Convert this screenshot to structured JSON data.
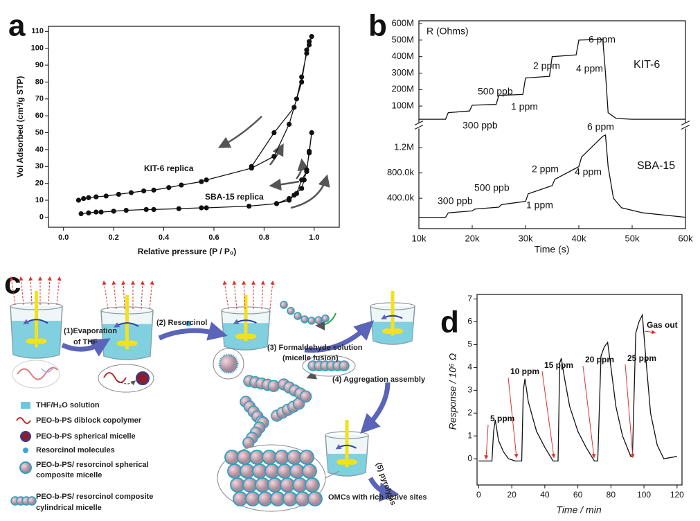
{
  "chart_data": [
    {
      "type": "line",
      "panel": "a",
      "markers": true,
      "x_label": "Relative pressure (P / P₀)",
      "y_label": "Vol Adsorbed (cm³/g STP)",
      "xlim": [
        -0.06,
        1.1
      ],
      "ylim": [
        -6,
        113
      ],
      "xticks": [
        {
          "value": 0,
          "label": "0.0"
        },
        0.2,
        0.4,
        0.6,
        0.8,
        {
          "value": 1,
          "label": "1.0"
        }
      ],
      "yticks": [
        0,
        10,
        20,
        30,
        40,
        50,
        60,
        70,
        80,
        90,
        100,
        110
      ],
      "series": [
        {
          "name": "KIT-6 replica",
          "color": "#111111",
          "x": [
            0.06,
            0.08,
            0.1,
            0.13,
            0.17,
            0.22,
            0.27,
            0.32,
            0.36,
            0.42,
            0.47,
            0.55,
            0.57,
            0.75,
            0.84,
            0.9,
            0.93,
            0.95,
            0.97,
            0.98,
            0.99,
            0.98,
            0.97,
            0.95,
            0.92,
            0.84,
            0.75
          ],
          "values": [
            10,
            11,
            11.5,
            12,
            12.5,
            13.5,
            14.5,
            15.5,
            16,
            17.5,
            19,
            21,
            22,
            29,
            36,
            55,
            70,
            83,
            97,
            102,
            107,
            104,
            99,
            80,
            65,
            50,
            30
          ]
        },
        {
          "name": "SBA-15 replica",
          "color": "#111111",
          "x": [
            0.07,
            0.1,
            0.13,
            0.15,
            0.2,
            0.25,
            0.33,
            0.36,
            0.46,
            0.55,
            0.57,
            0.74,
            0.85,
            0.9,
            0.92,
            0.95,
            0.96,
            0.97,
            0.98,
            0.99,
            0.98,
            0.97,
            0.95,
            0.93,
            0.9,
            0.85
          ],
          "values": [
            2,
            2.5,
            3,
            3,
            3.5,
            4,
            4.5,
            4.5,
            5,
            5.5,
            5.5,
            6.5,
            8,
            10,
            13,
            17,
            22,
            28,
            38,
            50,
            39,
            27,
            22,
            14,
            11,
            8
          ]
        }
      ]
    },
    {
      "type": "line",
      "panel": "b",
      "x_label": "Time (s)",
      "y_label": "R (Ohms)",
      "xlim": [
        10000,
        60000
      ],
      "ylim": [
        -13000000,
        617000000
      ],
      "y2lim": [
        -80000,
        1530000
      ],
      "xticks": [
        {
          "value": 10000,
          "label": "10k"
        },
        {
          "value": 20000,
          "label": "20k"
        },
        {
          "value": 30000,
          "label": "30k"
        },
        {
          "value": 40000,
          "label": "40k"
        },
        {
          "value": 50000,
          "label": "50k"
        },
        {
          "value": 60000,
          "label": "60k"
        }
      ],
      "yticks": [
        {
          "value": 100000000,
          "label": "100M"
        },
        {
          "value": 200000000,
          "label": "200M"
        },
        {
          "value": 300000000,
          "label": "300M"
        },
        {
          "value": 400000000,
          "label": "400M"
        },
        {
          "value": 500000000,
          "label": "500M"
        },
        {
          "value": 600000000,
          "label": "600M"
        }
      ],
      "y2ticks": [
        {
          "value": 400000,
          "label": "400.0k"
        },
        {
          "value": 800000,
          "label": "800.0k"
        },
        {
          "value": 1200000,
          "label": "1.2M"
        }
      ],
      "annotations": [
        "500 ppb",
        "300 ppb",
        "1 ppm",
        "2 ppm",
        "4 ppm",
        "6 ppm",
        "300 ppb",
        "500 ppb",
        "1 ppm",
        "2 ppm",
        "4 ppm",
        "6 ppm"
      ],
      "series": [
        {
          "name": "KIT-6",
          "color": "#111111",
          "axis": "y",
          "x": [
            10000,
            15000,
            15500,
            19500,
            20000,
            24500,
            25000,
            29500,
            30000,
            34500,
            35000,
            39500,
            40000,
            44500,
            45000,
            45500,
            47000,
            50000,
            55000,
            60000
          ],
          "values": [
            20000000,
            20000000,
            60000000,
            70000000,
            105000000,
            110000000,
            165000000,
            170000000,
            270000000,
            280000000,
            400000000,
            410000000,
            500000000,
            505000000,
            300000000,
            60000000,
            25000000,
            20000000,
            20000000,
            20000000
          ]
        },
        {
          "name": "SBA-15",
          "color": "#111111",
          "axis": "y2",
          "x": [
            10000,
            15000,
            15500,
            20000,
            20500,
            25000,
            25500,
            30000,
            30500,
            35000,
            35500,
            40000,
            40500,
            44500,
            45000,
            45500,
            46500,
            48000,
            52000,
            60000
          ],
          "values": [
            100000,
            100000,
            170000,
            200000,
            230000,
            260000,
            300000,
            350000,
            470000,
            600000,
            700000,
            900000,
            1050000,
            1380000,
            1400000,
            900000,
            400000,
            250000,
            170000,
            100000
          ]
        }
      ]
    },
    {
      "type": "line",
      "panel": "d",
      "x_label": "Time / min",
      "y_label": "Response / 10⁶ Ω",
      "xlim": [
        -1,
        123
      ],
      "ylim": [
        -1.15,
        7.2
      ],
      "xticks": [
        0,
        20,
        40,
        60,
        80,
        100,
        120
      ],
      "yticks": [
        0,
        1,
        2,
        3,
        4,
        5,
        6,
        7
      ],
      "annotation_color": "#e0322a",
      "annotations": [
        "5 ppm",
        "10 ppm",
        "15 ppm",
        "20 ppm",
        "25 ppm",
        "Gas out"
      ],
      "series": [
        {
          "color": "#111111",
          "x": [
            0,
            5,
            8,
            9,
            10,
            12,
            15,
            18,
            22,
            26,
            27,
            28,
            30,
            35,
            40,
            45,
            48,
            49,
            50,
            52,
            55,
            60,
            65,
            70,
            72,
            74,
            76,
            78,
            80,
            83,
            87,
            92,
            93,
            95,
            97,
            99,
            101,
            104,
            108,
            112,
            120
          ],
          "values": [
            -0.1,
            -0.1,
            -0.1,
            1.2,
            1.7,
            0.8,
            0.3,
            0,
            -0.1,
            -0.1,
            3.0,
            3.5,
            2.5,
            1.2,
            0.5,
            -0.1,
            -0.1,
            4.2,
            4.4,
            3.5,
            2.3,
            1.2,
            0.5,
            -0.1,
            -0.1,
            4.5,
            4.9,
            5.1,
            4.0,
            2.3,
            1.0,
            0.1,
            0.1,
            5.5,
            6.0,
            6.3,
            4.5,
            2.0,
            0.6,
            0.0,
            0.1
          ]
        }
      ]
    }
  ],
  "diagram": {
    "panel": "c",
    "steps": [
      {
        "lines": [
          "(1)Evaporation",
          "of THF"
        ]
      },
      {
        "lines": [
          "(2) Resorcinol"
        ]
      },
      {
        "lines": [
          "(3) Formaldehyde solution",
          "(micelle fusion)"
        ]
      },
      {
        "lines": [
          "(4) Aggregation assembly"
        ]
      },
      {
        "lines": [
          "(5) pyrolysis"
        ]
      }
    ],
    "product": "OMCs with rich active sites",
    "legend": [
      {
        "lines": [
          "THF/H₂O solution"
        ]
      },
      {
        "lines": [
          "PEO-b-PS diblock copolymer"
        ]
      },
      {
        "lines": [
          "PEO-b-PS spherical micelle"
        ]
      },
      {
        "lines": [
          "Resorcinol molecules"
        ]
      },
      {
        "lines": [
          "PEO-b-PS/ resorcinol spherical",
          "composite micelle"
        ]
      },
      {
        "lines": [
          "PEO-b-PS/ resorcinol composite",
          "cylindrical micelle"
        ]
      }
    ]
  }
}
